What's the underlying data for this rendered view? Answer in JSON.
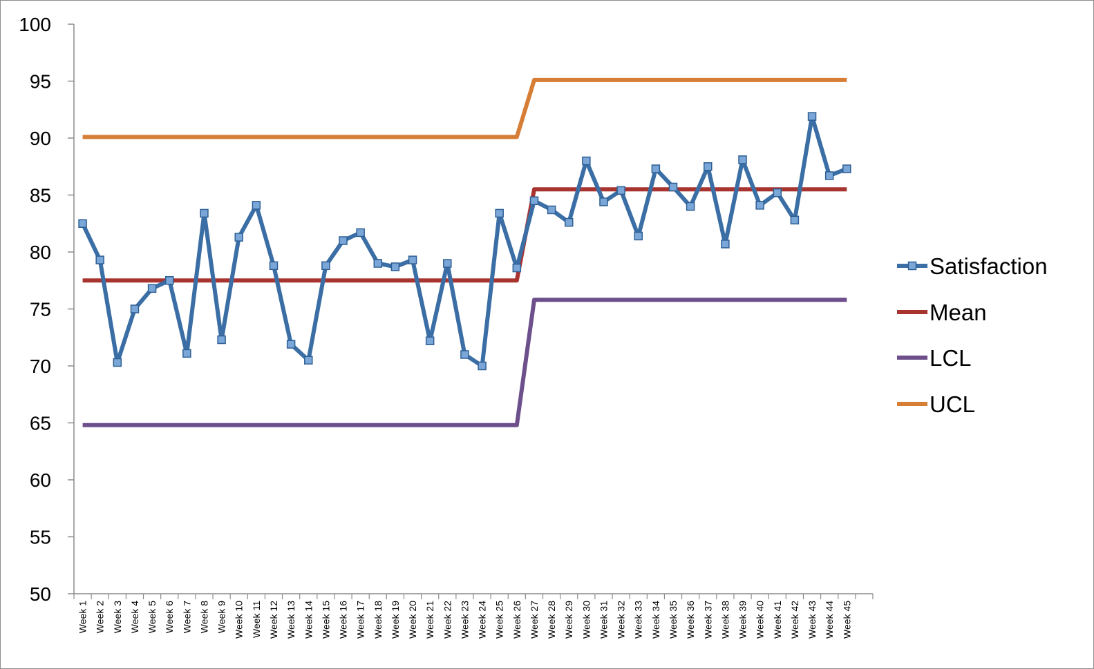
{
  "chart_data": {
    "type": "line",
    "title": "",
    "xlabel": "",
    "ylabel": "",
    "ylim": [
      50,
      100
    ],
    "yticks": [
      50,
      55,
      60,
      65,
      70,
      75,
      80,
      85,
      90,
      95,
      100
    ],
    "grid": false,
    "legend_position": "right",
    "categories": [
      "Week 1",
      "Week 2",
      "Week 3",
      "Week 4",
      "Week 5",
      "Week 6",
      "Week 7",
      "Week 8",
      "Week 9",
      "Week 10",
      "Week 11",
      "Week 12",
      "Week 13",
      "Week 14",
      "Week 15",
      "Week 16",
      "Week 17",
      "Week 18",
      "Week 19",
      "Week 20",
      "Week 21",
      "Week 22",
      "Week 23",
      "Week 24",
      "Week 25",
      "Week 26",
      "Week 27",
      "Week 28",
      "Week 29",
      "Week 30",
      "Week 31",
      "Week 32",
      "Week 33",
      "Week 34",
      "Week 35",
      "Week 36",
      "Week 37",
      "Week 38",
      "Week 39",
      "Week 40",
      "Week 41",
      "Week 42",
      "Week 43",
      "Week 44",
      "Week 45"
    ],
    "series": [
      {
        "name": "Satisfaction",
        "color": "#3a6ea5",
        "marker": "square",
        "values": [
          82.5,
          79.3,
          70.3,
          75.0,
          76.8,
          77.5,
          71.1,
          83.4,
          72.3,
          81.3,
          84.1,
          78.8,
          71.9,
          70.5,
          78.8,
          81.0,
          81.7,
          79.0,
          78.7,
          79.3,
          72.2,
          79.0,
          71.0,
          70.0,
          83.4,
          78.6,
          84.5,
          83.7,
          82.6,
          88.0,
          84.4,
          85.4,
          81.4,
          87.3,
          85.7,
          84.0,
          87.5,
          80.7,
          88.1,
          84.1,
          85.2,
          82.8,
          91.9,
          86.7,
          87.3
        ]
      },
      {
        "name": "Mean",
        "color": "#a83430",
        "values": [
          77.5,
          77.5,
          77.5,
          77.5,
          77.5,
          77.5,
          77.5,
          77.5,
          77.5,
          77.5,
          77.5,
          77.5,
          77.5,
          77.5,
          77.5,
          77.5,
          77.5,
          77.5,
          77.5,
          77.5,
          77.5,
          77.5,
          77.5,
          77.5,
          77.5,
          77.5,
          85.5,
          85.5,
          85.5,
          85.5,
          85.5,
          85.5,
          85.5,
          85.5,
          85.5,
          85.5,
          85.5,
          85.5,
          85.5,
          85.5,
          85.5,
          85.5,
          85.5,
          85.5,
          85.5
        ]
      },
      {
        "name": "LCL",
        "color": "#6d4f8c",
        "values": [
          64.8,
          64.8,
          64.8,
          64.8,
          64.8,
          64.8,
          64.8,
          64.8,
          64.8,
          64.8,
          64.8,
          64.8,
          64.8,
          64.8,
          64.8,
          64.8,
          64.8,
          64.8,
          64.8,
          64.8,
          64.8,
          64.8,
          64.8,
          64.8,
          64.8,
          64.8,
          75.8,
          75.8,
          75.8,
          75.8,
          75.8,
          75.8,
          75.8,
          75.8,
          75.8,
          75.8,
          75.8,
          75.8,
          75.8,
          75.8,
          75.8,
          75.8,
          75.8,
          75.8,
          75.8
        ]
      },
      {
        "name": "UCL",
        "color": "#d67d36",
        "values": [
          90.1,
          90.1,
          90.1,
          90.1,
          90.1,
          90.1,
          90.1,
          90.1,
          90.1,
          90.1,
          90.1,
          90.1,
          90.1,
          90.1,
          90.1,
          90.1,
          90.1,
          90.1,
          90.1,
          90.1,
          90.1,
          90.1,
          90.1,
          90.1,
          90.1,
          90.1,
          95.1,
          95.1,
          95.1,
          95.1,
          95.1,
          95.1,
          95.1,
          95.1,
          95.1,
          95.1,
          95.1,
          95.1,
          95.1,
          95.1,
          95.1,
          95.1,
          95.1,
          95.1,
          95.1
        ]
      }
    ]
  }
}
